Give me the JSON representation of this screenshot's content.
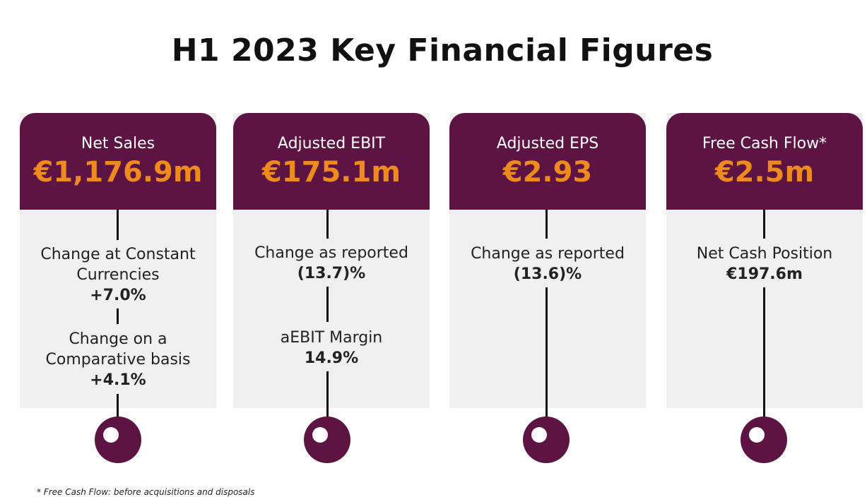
{
  "title": "H1 2023 Key Financial Figures",
  "cards": [
    {
      "label": "Net Sales",
      "value": "€1,176.9m",
      "metrics": [
        {
          "label_line1": "Change at Constant",
          "label_line2": "Currencies",
          "value": "+7.0%"
        },
        {
          "label_line1": "Change on a",
          "label_line2": "Comparative basis",
          "value": "+4.1%"
        }
      ]
    },
    {
      "label": "Adjusted EBIT",
      "value": "€175.1m",
      "metrics": [
        {
          "label": "Change as reported",
          "value": "(13.7)%"
        },
        {
          "label": "aEBIT Margin",
          "value": "14.9%"
        }
      ]
    },
    {
      "label": "Adjusted EPS",
      "value": "€2.93",
      "metrics": [
        {
          "label": "Change as reported",
          "value": "(13.6)%"
        }
      ]
    },
    {
      "label": "Free Cash Flow*",
      "value": "€2.5m",
      "metrics": [
        {
          "label": "Net Cash Position",
          "value": "€197.6m"
        }
      ]
    }
  ],
  "footnote": "* Free Cash Flow: before acquisitions and disposals",
  "colors": {
    "header_bg": "#5e1442",
    "value_accent": "#ef8a1c",
    "card_bg": "#f0f0f0"
  }
}
